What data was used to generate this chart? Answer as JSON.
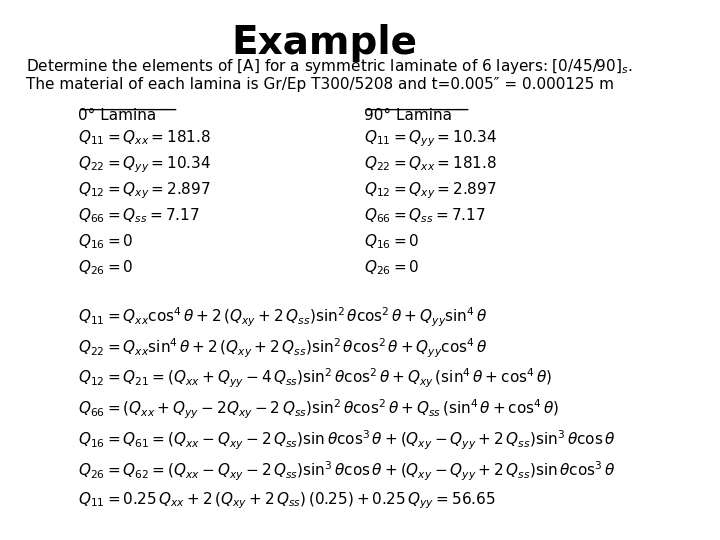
{
  "title": "Example",
  "title_fontsize": 28,
  "title_fontweight": "bold",
  "background_color": "#ffffff",
  "text_color": "#000000",
  "subtitle_line1": "Determine the elements of [A] for a symmetric laminate of 6 layers: [0/45/90]$_s$.",
  "subtitle_line2": "The material of each lamina is Gr/Ep T300/5208 and t=0.005″ = 0.000125 m",
  "subtitle_fontsize": 11,
  "col1_header": "0° Lamina",
  "col2_header": "90° Lamina",
  "col1_lines": [
    "$Q_{11} = Q_{xx} = 181.8$",
    "$Q_{22} = Q_{yy} = 10.34$",
    "$Q_{12} = Q_{xy} = 2.897$",
    "$Q_{66} = Q_{ss} = 7.17$",
    "$Q_{16} = 0$",
    "$Q_{26} = 0$"
  ],
  "col2_lines": [
    "$Q_{11} = Q_{yy} = 10.34$",
    "$Q_{22} = Q_{xx} = 181.8$",
    "$Q_{12} = Q_{xy} = 2.897$",
    "$Q_{66} = Q_{ss} = 7.17$",
    "$Q_{16} = 0$",
    "$Q_{26} = 0$"
  ],
  "formula_lines": [
    "$Q_{11} = Q_{xx}\\cos^4\\theta + 2\\,(Q_{xy} + 2\\,Q_{ss})\\sin^2\\theta\\cos^2\\theta + Q_{yy}\\sin^4\\theta$",
    "$Q_{22} = Q_{xx}\\sin^4\\theta + 2\\,(Q_{xy} + 2\\,Q_{ss})\\sin^2\\theta\\cos^2\\theta + Q_{yy}\\cos^4\\theta$",
    "$Q_{12} = Q_{21} = (Q_{xx} + Q_{yy} - 4\\,Q_{ss})\\sin^2\\theta\\cos^2\\theta + Q_{xy}\\,(\\sin^4\\theta + \\cos^4\\theta)$",
    "$Q_{66} = (Q_{xx} + Q_{yy} - 2Q_{xy} - 2\\,Q_{ss})\\sin^2\\theta\\cos^2\\theta + Q_{ss}\\,(\\sin^4\\theta + \\cos^4\\theta)$",
    "$Q_{16} = Q_{61} = (Q_{xx} - Q_{xy} - 2\\,Q_{ss})\\sin\\theta\\cos^3\\theta + (Q_{xy} - Q_{yy} + 2\\,Q_{ss})\\sin^3\\theta\\cos\\theta$",
    "$Q_{26} = Q_{62} = (Q_{xx} - Q_{xy} - 2\\,Q_{ss})\\sin^3\\theta\\cos\\theta + (Q_{xy} - Q_{yy} + 2\\,Q_{ss})\\sin\\theta\\cos^3\\theta$",
    "$Q_{11} = 0.25\\,Q_{xx} + 2\\,(Q_{xy} + 2\\,Q_{ss})\\,(0.25) + 0.25\\,Q_{yy} = 56.65$"
  ],
  "body_fontsize": 11,
  "formula_fontsize": 11
}
